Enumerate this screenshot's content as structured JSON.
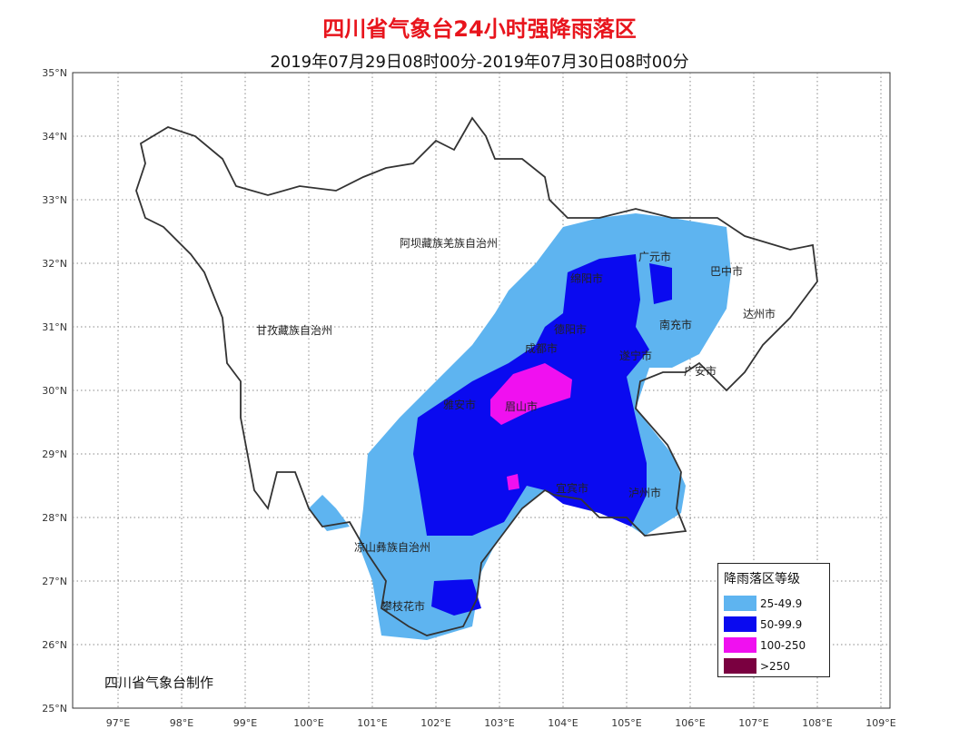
{
  "title": "四川省气象台24小时强降雨落区",
  "subtitle": "2019年07月29日08时00分-2019年07月30日08时00分",
  "credit": "四川省气象台制作",
  "lat_ticks": [
    "35°N",
    "34°N",
    "33°N",
    "32°N",
    "31°N",
    "30°N",
    "29°N",
    "28°N",
    "27°N",
    "26°N",
    "25°N"
  ],
  "lon_ticks": [
    "97°E",
    "98°E",
    "99°E",
    "100°E",
    "101°E",
    "102°E",
    "103°E",
    "104°E",
    "105°E",
    "106°E",
    "107°E",
    "108°E",
    "109°E"
  ],
  "regions": [
    "阿坝藏族羌族自治州",
    "甘孜藏族自治州",
    "凉山彝族自治州",
    "攀枝花市",
    "雅安市",
    "眉山市",
    "成都市",
    "德阳市",
    "绵阳市",
    "广元市",
    "巴中市",
    "达州市",
    "南充市",
    "遂宁市",
    "广安市",
    "宜宾市",
    "泸州市"
  ],
  "legend": {
    "title": "降雨落区等级",
    "items": [
      {
        "label": "25-49.9",
        "color": "#5eb4f0"
      },
      {
        "label": "50-99.9",
        "color": "#0a0af0"
      },
      {
        "label": "100-250",
        "color": "#f010f0"
      },
      {
        "label": ">250",
        "color": "#7a0040"
      }
    ]
  }
}
